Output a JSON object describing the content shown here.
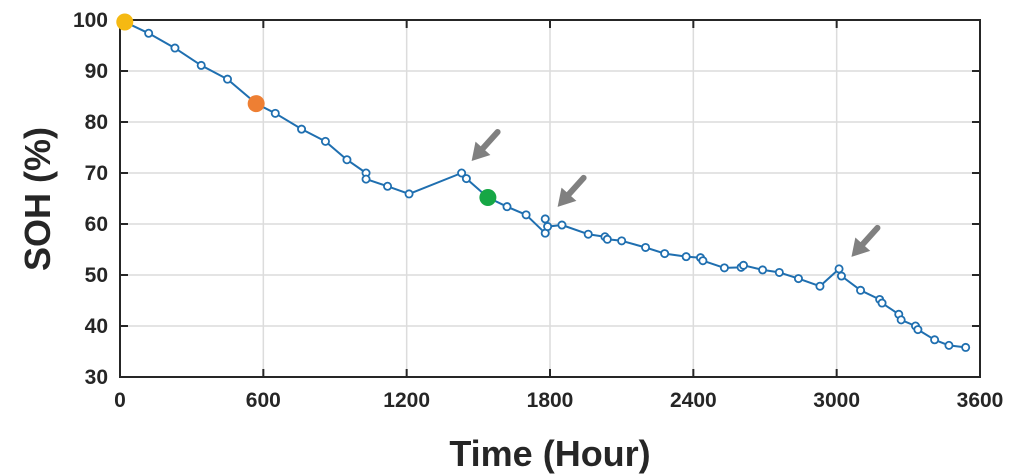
{
  "chart_data": {
    "type": "line",
    "title": "",
    "xlabel": "Time (Hour)",
    "ylabel": "SOH (%)",
    "xlim": [
      0,
      3600
    ],
    "ylim": [
      30,
      100
    ],
    "xticks": [
      0,
      600,
      1200,
      1800,
      2400,
      3000,
      3600
    ],
    "yticks": [
      30,
      40,
      50,
      60,
      70,
      80,
      90,
      100
    ],
    "grid": true,
    "series": [
      {
        "color": "#1f6fb0",
        "marker": "open-circle",
        "x": [
          20,
          120,
          230,
          340,
          450,
          570,
          650,
          760,
          860,
          950,
          1030,
          1030,
          1120,
          1210,
          1430,
          1450,
          1540,
          1620,
          1700,
          1780,
          1780,
          1790,
          1850,
          1960,
          2030,
          2040,
          2100,
          2200,
          2280,
          2370,
          2430,
          2440,
          2530,
          2600,
          2610,
          2690,
          2760,
          2840,
          2930,
          3010,
          3020,
          3100,
          3180,
          3190,
          3260,
          3270,
          3330,
          3340,
          3410,
          3470,
          3540
        ],
        "y": [
          99.6,
          97.4,
          94.5,
          91.1,
          88.4,
          83.6,
          81.7,
          78.6,
          76.2,
          72.6,
          70.0,
          68.8,
          67.4,
          65.9,
          70.0,
          68.9,
          65.2,
          63.4,
          61.8,
          58.2,
          61.0,
          59.5,
          59.8,
          58.0,
          57.5,
          57.0,
          56.7,
          55.4,
          54.2,
          53.6,
          53.4,
          52.8,
          51.4,
          51.5,
          51.9,
          51.0,
          50.5,
          49.3,
          47.8,
          51.2,
          49.8,
          47.0,
          45.2,
          44.5,
          42.3,
          41.2,
          40.0,
          39.3,
          37.3,
          36.2,
          35.8
        ]
      }
    ],
    "highlighted_points": [
      {
        "x": 20,
        "y": 99.6,
        "color": "#f5b912"
      },
      {
        "x": 570,
        "y": 83.6,
        "color": "#ee7f33"
      },
      {
        "x": 1540,
        "y": 65.2,
        "color": "#16a745"
      }
    ],
    "annotations": [
      {
        "type": "arrow",
        "points_to": {
          "x": 1430,
          "y": 70.0
        },
        "color": "#808080"
      },
      {
        "type": "arrow",
        "points_to": {
          "x": 1790,
          "y": 61.0
        },
        "color": "#808080"
      },
      {
        "type": "arrow",
        "points_to": {
          "x": 3020,
          "y": 51.2
        },
        "color": "#808080"
      }
    ]
  }
}
